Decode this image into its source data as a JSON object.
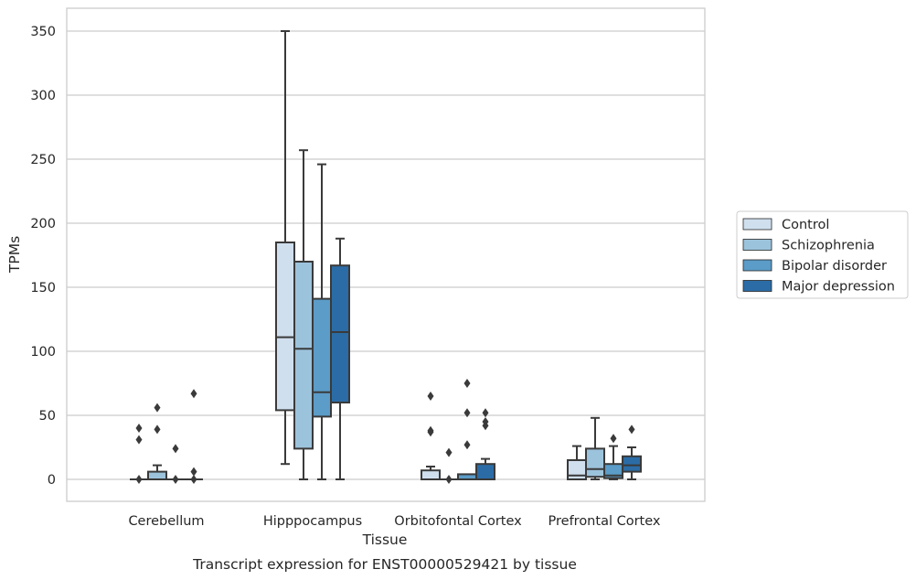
{
  "caption": "Transcript expression for ENST00000529421 by tissue",
  "chart_data": {
    "type": "box",
    "xlabel": "Tissue",
    "ylabel": "TPMs",
    "ylim": [
      -17,
      368
    ],
    "yticks": [
      0,
      50,
      100,
      150,
      200,
      250,
      300,
      350
    ],
    "grid": true,
    "legend_position": "right",
    "categories": [
      "Cerebellum",
      "Hipppocampus",
      "Orbitofontal Cortex",
      "Prefrontal Cortex"
    ],
    "series": [
      {
        "name": "Control",
        "color": "#cfdfee",
        "boxes": [
          {
            "min": 0,
            "q1": 0,
            "median": 0,
            "q3": 0,
            "max": 0,
            "outliers": [
              0,
              31,
              40
            ]
          },
          {
            "min": 12,
            "q1": 54,
            "median": 111,
            "q3": 185,
            "max": 350,
            "outliers": []
          },
          {
            "min": 0,
            "q1": 0,
            "median": 0,
            "q3": 7,
            "max": 10,
            "outliers": [
              37,
              38,
              65
            ]
          },
          {
            "min": 0,
            "q1": 0,
            "median": 3,
            "q3": 15,
            "max": 26,
            "outliers": []
          }
        ]
      },
      {
        "name": "Schizophrenia",
        "color": "#9cc3dc",
        "boxes": [
          {
            "min": 0,
            "q1": 0,
            "median": 0,
            "q3": 6,
            "max": 11,
            "outliers": [
              39,
              56
            ]
          },
          {
            "min": 0,
            "q1": 24,
            "median": 102,
            "q3": 170,
            "max": 257,
            "outliers": []
          },
          {
            "min": 0,
            "q1": 0,
            "median": 0,
            "q3": 0,
            "max": 0,
            "outliers": [
              0,
              21
            ]
          },
          {
            "min": 0,
            "q1": 2,
            "median": 8,
            "q3": 24,
            "max": 48,
            "outliers": []
          }
        ]
      },
      {
        "name": "Bipolar disorder",
        "color": "#5b9cc8",
        "boxes": [
          {
            "min": 0,
            "q1": 0,
            "median": 0,
            "q3": 0,
            "max": 0,
            "outliers": [
              0,
              24
            ]
          },
          {
            "min": 0,
            "q1": 49,
            "median": 68,
            "q3": 141,
            "max": 246,
            "outliers": []
          },
          {
            "min": 0,
            "q1": 0,
            "median": 0,
            "q3": 4,
            "max": 4,
            "outliers": [
              27,
              52,
              75
            ]
          },
          {
            "min": 0,
            "q1": 1,
            "median": 3,
            "q3": 12,
            "max": 26,
            "outliers": [
              32
            ]
          }
        ]
      },
      {
        "name": "Major depression",
        "color": "#2b6ca6",
        "boxes": [
          {
            "min": 0,
            "q1": 0,
            "median": 0,
            "q3": 0,
            "max": 0,
            "outliers": [
              0,
              6,
              67
            ]
          },
          {
            "min": 0,
            "q1": 60,
            "median": 115,
            "q3": 167,
            "max": 188,
            "outliers": []
          },
          {
            "min": 0,
            "q1": 0,
            "median": 0,
            "q3": 12,
            "max": 16,
            "outliers": [
              42,
              45,
              52
            ]
          },
          {
            "min": 0,
            "q1": 6,
            "median": 11,
            "q3": 18,
            "max": 25,
            "outliers": [
              39
            ]
          }
        ]
      }
    ]
  }
}
